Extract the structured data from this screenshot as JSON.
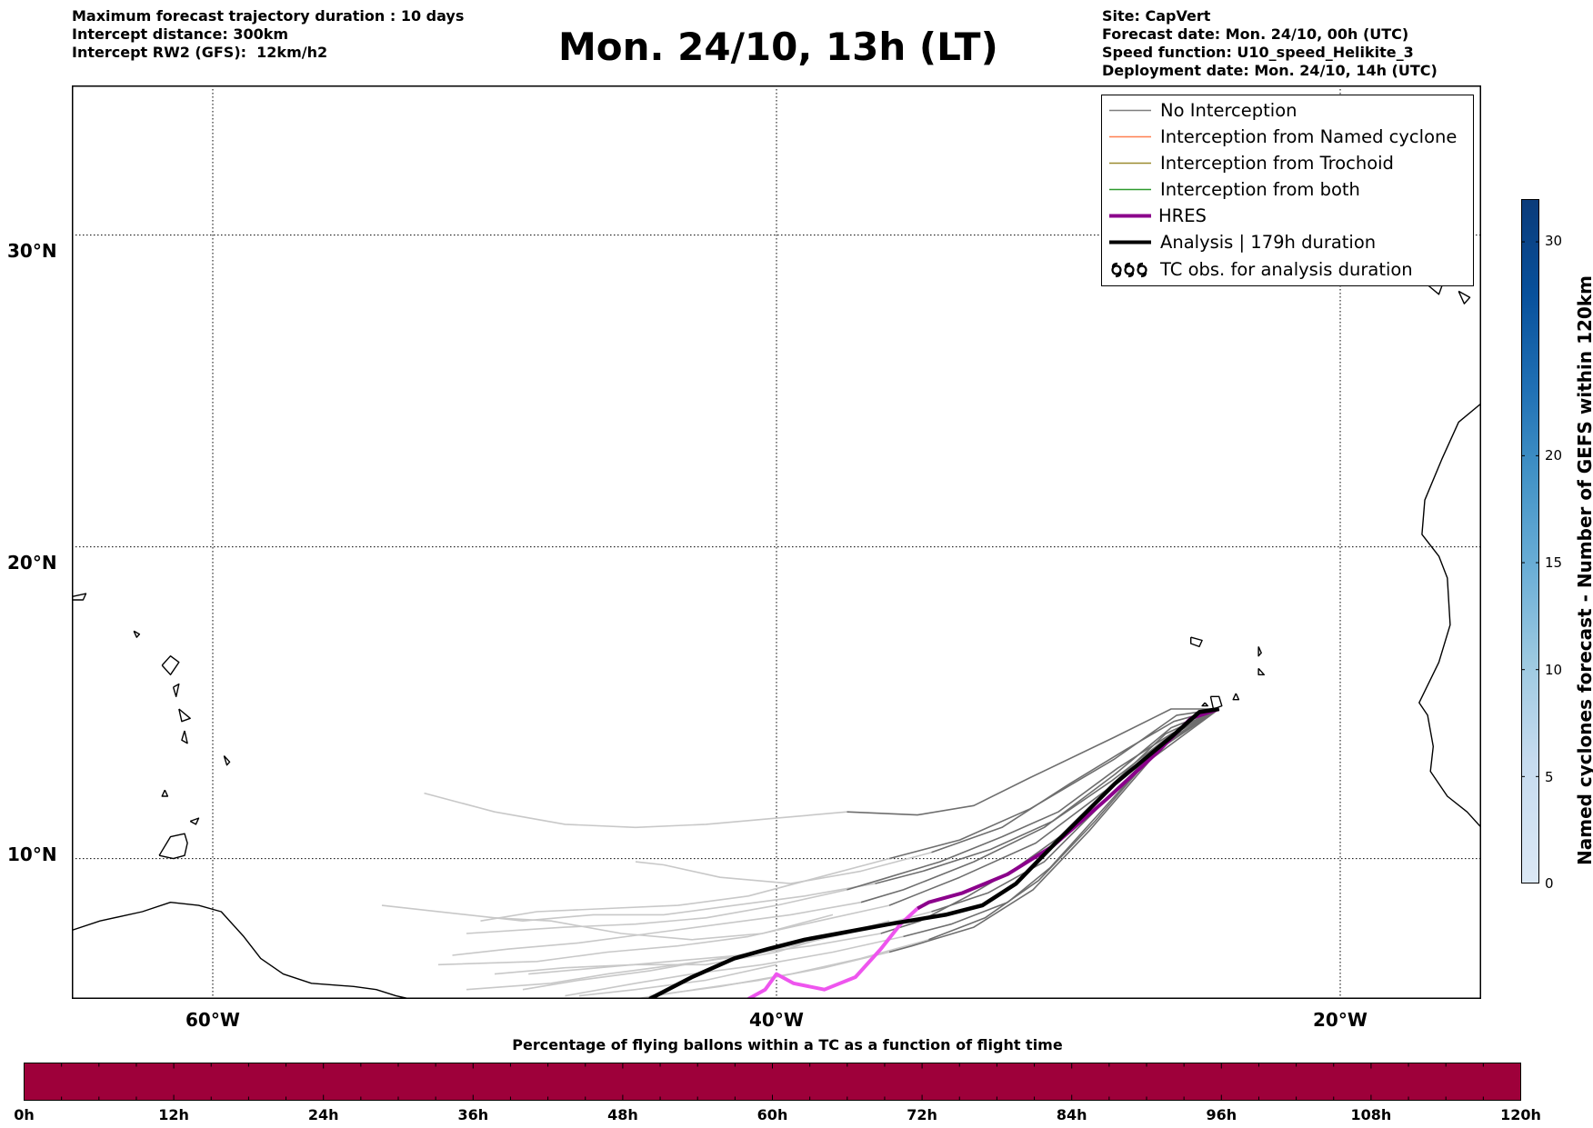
{
  "header": {
    "left_lines": [
      "Maximum forecast trajectory duration : 10 days",
      "Intercept distance: 300km",
      "Intercept RW2 (GFS):  12km/h2"
    ],
    "title": "Mon. 24/10, 13h (LT)",
    "right_lines": [
      "Site: CapVert",
      "Forecast date: Mon. 24/10, 00h (UTC)",
      "Speed function: U10_speed_Helikite_3",
      "Deployment date: Mon. 24/10, 14h (UTC)"
    ]
  },
  "map": {
    "lon_range": [
      -65,
      -15
    ],
    "lat_range": [
      5.5,
      34.8
    ],
    "lon_gridlines": [
      -60,
      -40,
      -20
    ],
    "lat_gridlines": [
      10,
      20,
      30
    ],
    "lon_tick_labels": [
      "60°W",
      "40°W",
      "20°W"
    ],
    "lat_tick_labels": [
      "10°N",
      "20°N",
      "30°N"
    ]
  },
  "legend": {
    "items": [
      {
        "label": "No Interception",
        "color": "#7f7f7f",
        "style": "thin"
      },
      {
        "label": "Interception from Named cyclone",
        "color": "#ff7f50",
        "style": "thin"
      },
      {
        "label": "Interception from Trochoid",
        "color": "#9a8a2e",
        "style": "thin"
      },
      {
        "label": "Interception from both",
        "color": "#2e9a2e",
        "style": "thin"
      },
      {
        "label": "HRES",
        "color": "#8b008b",
        "style": "thick"
      },
      {
        "label": "Analysis | 179h duration",
        "color": "#000000",
        "style": "thick"
      },
      {
        "label": "TC obs. for analysis duration",
        "color": "#000000",
        "style": "cyclone-symbols"
      }
    ]
  },
  "colorbar_vertical": {
    "label": "Named cyclones forecast - Number of GEFS within 120km",
    "ticks": [
      "0",
      "5",
      "10",
      "15",
      "20",
      "30"
    ],
    "tick_values": [
      0,
      5,
      10,
      15,
      20,
      30
    ],
    "max": 32,
    "color_low": "#dbe8f5",
    "color_high": "#0b3b7a"
  },
  "colorbar_horizontal": {
    "title": "Percentage of flying ballons within a TC as a function of flight time",
    "ticks": [
      "0h",
      "12h",
      "24h",
      "36h",
      "48h",
      "60h",
      "72h",
      "84h",
      "96h",
      "108h",
      "120h"
    ],
    "fill_color": "#9e003a"
  },
  "trajectories": {
    "analysis": [
      [
        -24.3,
        14.8
      ],
      [
        -25.0,
        14.7
      ],
      [
        -26.0,
        13.9
      ],
      [
        -28.0,
        12.4
      ],
      [
        -30.0,
        10.6
      ],
      [
        -31.5,
        9.2
      ],
      [
        -32.7,
        8.5
      ],
      [
        -34.0,
        8.2
      ],
      [
        -36.0,
        7.9
      ],
      [
        -37.8,
        7.6
      ],
      [
        -39.0,
        7.4
      ],
      [
        -40.3,
        7.1
      ],
      [
        -41.5,
        6.8
      ],
      [
        -43.0,
        6.2
      ],
      [
        -44.5,
        5.5
      ]
    ],
    "hres": [
      [
        -24.3,
        14.8
      ],
      [
        -25.3,
        14.5
      ],
      [
        -26.5,
        13.4
      ],
      [
        -28.3,
        11.9
      ],
      [
        -30.2,
        10.4
      ],
      [
        -31.8,
        9.5
      ],
      [
        -33.4,
        8.9
      ],
      [
        -34.6,
        8.6
      ],
      [
        -35.0,
        8.4
      ],
      [
        -35.6,
        7.9
      ],
      [
        -36.3,
        7.1
      ],
      [
        -37.2,
        6.2
      ],
      [
        -38.3,
        5.8
      ],
      [
        -39.4,
        6.0
      ],
      [
        -40.0,
        6.3
      ],
      [
        -40.4,
        5.8
      ],
      [
        -41.0,
        5.5
      ]
    ],
    "no_interception_dark": [
      [
        [
          -24.3,
          14.8
        ],
        [
          -26.0,
          14.8
        ],
        [
          -28.0,
          13.9
        ],
        [
          -31.0,
          12.6
        ],
        [
          -33.0,
          11.7
        ],
        [
          -35.0,
          11.4
        ],
        [
          -37.5,
          11.5
        ]
      ],
      [
        [
          -24.3,
          14.8
        ],
        [
          -25.8,
          14.6
        ],
        [
          -28.0,
          13.2
        ],
        [
          -31.0,
          11.6
        ],
        [
          -33.5,
          10.6
        ],
        [
          -36.0,
          10.0
        ]
      ],
      [
        [
          -24.3,
          14.8
        ],
        [
          -26.0,
          14.2
        ],
        [
          -28.0,
          12.7
        ],
        [
          -30.5,
          11.0
        ],
        [
          -33.0,
          9.9
        ],
        [
          -35.5,
          9.0
        ],
        [
          -37.0,
          8.6
        ]
      ],
      [
        [
          -24.3,
          14.8
        ],
        [
          -26.2,
          14.0
        ],
        [
          -28.3,
          12.2
        ],
        [
          -30.8,
          10.5
        ],
        [
          -33.5,
          9.4
        ],
        [
          -36.0,
          8.5
        ]
      ],
      [
        [
          -24.3,
          14.8
        ],
        [
          -26.3,
          13.7
        ],
        [
          -28.4,
          11.8
        ],
        [
          -30.5,
          9.9
        ],
        [
          -32.5,
          8.9
        ],
        [
          -34.5,
          8.3
        ]
      ],
      [
        [
          -24.3,
          14.8
        ],
        [
          -26.5,
          13.5
        ],
        [
          -28.6,
          11.4
        ],
        [
          -30.3,
          9.7
        ],
        [
          -31.8,
          8.6
        ],
        [
          -33.8,
          7.9
        ],
        [
          -35.5,
          7.5
        ]
      ],
      [
        [
          -24.3,
          14.8
        ],
        [
          -26.1,
          13.9
        ],
        [
          -28.1,
          12.5
        ],
        [
          -30.2,
          11.2
        ],
        [
          -32.4,
          10.3
        ],
        [
          -34.8,
          9.6
        ],
        [
          -36.5,
          9.2
        ]
      ],
      [
        [
          -24.3,
          14.8
        ],
        [
          -25.9,
          14.4
        ],
        [
          -27.6,
          13.5
        ],
        [
          -29.6,
          12.4
        ],
        [
          -32.0,
          11.0
        ],
        [
          -34.5,
          10.2
        ]
      ],
      [
        [
          -24.3,
          14.8
        ],
        [
          -26.4,
          13.6
        ],
        [
          -28.7,
          11.2
        ],
        [
          -30.7,
          9.3
        ],
        [
          -32.6,
          8.1
        ],
        [
          -34.6,
          7.4
        ]
      ],
      [
        [
          -24.3,
          14.8
        ],
        [
          -26.6,
          13.4
        ],
        [
          -28.2,
          12.0
        ],
        [
          -29.8,
          10.8
        ],
        [
          -31.5,
          9.7
        ],
        [
          -33.2,
          8.8
        ],
        [
          -34.9,
          8.0
        ],
        [
          -36.3,
          7.6
        ]
      ],
      [
        [
          -24.3,
          14.8
        ],
        [
          -26.0,
          14.0
        ],
        [
          -27.9,
          12.9
        ],
        [
          -30.0,
          11.5
        ],
        [
          -32.0,
          10.7
        ],
        [
          -34.2,
          9.9
        ],
        [
          -36.4,
          9.3
        ],
        [
          -37.5,
          9.0
        ]
      ],
      [
        [
          -24.3,
          14.8
        ],
        [
          -26.7,
          13.2
        ],
        [
          -28.9,
          10.9
        ],
        [
          -30.9,
          9.0
        ],
        [
          -33.0,
          7.8
        ],
        [
          -35.2,
          7.2
        ],
        [
          -36.0,
          7.0
        ]
      ]
    ],
    "no_interception_light": [
      [
        [
          -37.5,
          11.5
        ],
        [
          -40.0,
          11.3
        ],
        [
          -42.5,
          11.1
        ],
        [
          -45.0,
          11.0
        ],
        [
          -47.5,
          11.1
        ],
        [
          -50.0,
          11.5
        ],
        [
          -52.5,
          12.1
        ]
      ],
      [
        [
          -36.0,
          10.0
        ],
        [
          -38.5,
          9.4
        ],
        [
          -41.0,
          8.8
        ],
        [
          -43.5,
          8.5
        ],
        [
          -46.0,
          8.4
        ],
        [
          -48.5,
          8.3
        ],
        [
          -50.5,
          8.0
        ]
      ],
      [
        [
          -37.0,
          8.6
        ],
        [
          -39.5,
          8.2
        ],
        [
          -42.0,
          7.9
        ],
        [
          -44.5,
          7.6
        ],
        [
          -47.0,
          7.3
        ],
        [
          -49.5,
          7.1
        ],
        [
          -51.5,
          6.9
        ]
      ],
      [
        [
          -36.0,
          8.5
        ],
        [
          -38.5,
          8.0
        ],
        [
          -41.0,
          7.5
        ],
        [
          -43.5,
          7.2
        ],
        [
          -46.0,
          7.0
        ],
        [
          -48.5,
          6.7
        ],
        [
          -52.0,
          6.6
        ]
      ],
      [
        [
          -34.5,
          8.3
        ],
        [
          -37.0,
          7.7
        ],
        [
          -39.5,
          7.2
        ],
        [
          -42.0,
          6.8
        ],
        [
          -44.5,
          6.4
        ],
        [
          -47.0,
          6.1
        ],
        [
          -49.0,
          5.8
        ]
      ],
      [
        [
          -35.5,
          7.5
        ],
        [
          -38.0,
          7.0
        ],
        [
          -40.5,
          6.6
        ],
        [
          -43.0,
          6.3
        ],
        [
          -45.0,
          6.0
        ],
        [
          -47.5,
          5.6
        ]
      ],
      [
        [
          -36.5,
          9.2
        ],
        [
          -39.0,
          8.8
        ],
        [
          -41.5,
          8.5
        ],
        [
          -44.0,
          8.2
        ],
        [
          -46.5,
          8.2
        ],
        [
          -49.0,
          8.0
        ],
        [
          -54.0,
          8.5
        ]
      ],
      [
        [
          -34.5,
          10.2
        ],
        [
          -37.0,
          9.6
        ],
        [
          -39.5,
          9.2
        ],
        [
          -42.0,
          9.4
        ],
        [
          -44.0,
          9.8
        ],
        [
          -45.0,
          9.9
        ]
      ],
      [
        [
          -34.6,
          7.4
        ],
        [
          -37.0,
          6.8
        ],
        [
          -39.5,
          6.3
        ],
        [
          -42.0,
          5.9
        ],
        [
          -44.5,
          5.6
        ]
      ],
      [
        [
          -36.3,
          7.6
        ],
        [
          -38.8,
          7.2
        ],
        [
          -41.3,
          6.9
        ],
        [
          -43.8,
          6.7
        ],
        [
          -46.3,
          6.5
        ],
        [
          -48.8,
          6.3
        ]
      ],
      [
        [
          -37.5,
          9.0
        ],
        [
          -40.0,
          8.5
        ],
        [
          -42.5,
          8.1
        ],
        [
          -45.0,
          7.9
        ],
        [
          -47.5,
          7.8
        ],
        [
          -51.0,
          7.6
        ]
      ],
      [
        [
          -36.0,
          7.0
        ],
        [
          -38.3,
          6.5
        ],
        [
          -40.6,
          6.1
        ],
        [
          -42.9,
          5.8
        ],
        [
          -45.0,
          5.5
        ]
      ],
      [
        [
          -38.0,
          8.2
        ],
        [
          -40.5,
          7.6
        ],
        [
          -43.0,
          7.4
        ],
        [
          -45.5,
          7.6
        ],
        [
          -48.0,
          8.0
        ],
        [
          -50.0,
          8.1
        ]
      ],
      [
        [
          -37.8,
          7.6
        ],
        [
          -40.0,
          7.0
        ],
        [
          -42.5,
          6.6
        ],
        [
          -45.0,
          6.6
        ],
        [
          -47.5,
          6.5
        ],
        [
          -50.0,
          6.3
        ]
      ],
      [
        [
          -40.0,
          6.6
        ],
        [
          -42.5,
          6.1
        ],
        [
          -45.0,
          5.8
        ],
        [
          -47.0,
          5.6
        ]
      ],
      [
        [
          -36.0,
          8.0
        ],
        [
          -38.5,
          7.4
        ],
        [
          -41.0,
          6.9
        ],
        [
          -43.5,
          6.6
        ],
        [
          -46.0,
          6.3
        ],
        [
          -48.0,
          6.0
        ],
        [
          -51.0,
          5.8
        ]
      ]
    ]
  },
  "coastlines": {
    "south_america": [
      [
        -65.0,
        7.7
      ],
      [
        -64.0,
        8.0
      ],
      [
        -62.5,
        8.3
      ],
      [
        -61.5,
        8.6
      ],
      [
        -60.5,
        8.5
      ],
      [
        -59.7,
        8.3
      ],
      [
        -58.9,
        7.5
      ],
      [
        -58.3,
        6.8
      ],
      [
        -57.5,
        6.3
      ],
      [
        -56.5,
        6.0
      ],
      [
        -55.0,
        5.9
      ],
      [
        -54.2,
        5.8
      ],
      [
        -53.5,
        5.6
      ],
      [
        -52.5,
        5.4
      ]
    ],
    "trinidad": [
      [
        -61.9,
        10.1
      ],
      [
        -61.5,
        10.7
      ],
      [
        -61.0,
        10.8
      ],
      [
        -60.9,
        10.5
      ],
      [
        -61.0,
        10.1
      ],
      [
        -61.4,
        10.0
      ],
      [
        -61.9,
        10.1
      ]
    ],
    "tobago": [
      [
        -60.8,
        11.2
      ],
      [
        -60.5,
        11.3
      ],
      [
        -60.6,
        11.1
      ],
      [
        -60.8,
        11.2
      ]
    ],
    "antilles": [
      [
        [
          -61.8,
          16.2
        ],
        [
          -61.5,
          16.5
        ],
        [
          -61.2,
          16.3
        ],
        [
          -61.5,
          15.9
        ],
        [
          -61.8,
          16.2
        ]
      ],
      [
        [
          -61.4,
          15.5
        ],
        [
          -61.2,
          15.6
        ],
        [
          -61.3,
          15.2
        ],
        [
          -61.4,
          15.5
        ]
      ],
      [
        [
          -61.2,
          14.8
        ],
        [
          -60.8,
          14.5
        ],
        [
          -61.1,
          14.4
        ],
        [
          -61.2,
          14.8
        ]
      ],
      [
        [
          -61.0,
          14.1
        ],
        [
          -60.9,
          13.7
        ],
        [
          -61.1,
          13.8
        ],
        [
          -61.0,
          14.1
        ]
      ],
      [
        [
          -59.6,
          13.3
        ],
        [
          -59.4,
          13.1
        ],
        [
          -59.5,
          13.0
        ],
        [
          -59.6,
          13.3
        ]
      ],
      [
        [
          -61.7,
          12.2
        ],
        [
          -61.6,
          12.0
        ],
        [
          -61.8,
          12.0
        ],
        [
          -61.7,
          12.2
        ]
      ],
      [
        [
          -62.8,
          17.3
        ],
        [
          -62.6,
          17.2
        ],
        [
          -62.7,
          17.1
        ],
        [
          -62.8,
          17.3
        ]
      ],
      [
        [
          -65.0,
          18.4
        ],
        [
          -64.5,
          18.5
        ],
        [
          -64.6,
          18.3
        ],
        [
          -65.0,
          18.3
        ]
      ]
    ],
    "africa": [
      [
        -15.0,
        24.6
      ],
      [
        -15.8,
        24.0
      ],
      [
        -16.4,
        22.8
      ],
      [
        -17.0,
        21.5
      ],
      [
        -17.1,
        20.4
      ],
      [
        -16.5,
        19.7
      ],
      [
        -16.2,
        19.0
      ],
      [
        -16.1,
        17.5
      ],
      [
        -16.5,
        16.3
      ],
      [
        -17.2,
        15.0
      ],
      [
        -16.9,
        14.6
      ],
      [
        -16.7,
        13.6
      ],
      [
        -16.8,
        12.8
      ],
      [
        -16.2,
        12.0
      ],
      [
        -15.5,
        11.5
      ],
      [
        -15.0,
        11.0
      ]
    ],
    "cape_verde": [
      [
        [
          -25.3,
          17.1
        ],
        [
          -24.9,
          17.0
        ],
        [
          -25.0,
          16.8
        ],
        [
          -25.3,
          16.9
        ],
        [
          -25.3,
          17.1
        ]
      ],
      [
        [
          -22.9,
          16.8
        ],
        [
          -22.8,
          16.6
        ],
        [
          -22.9,
          16.5
        ],
        [
          -22.9,
          16.8
        ]
      ],
      [
        [
          -22.9,
          16.1
        ],
        [
          -22.7,
          15.9
        ],
        [
          -22.9,
          15.9
        ],
        [
          -22.9,
          16.1
        ]
      ],
      [
        [
          -24.6,
          15.2
        ],
        [
          -24.3,
          15.2
        ],
        [
          -24.2,
          14.9
        ],
        [
          -24.5,
          14.8
        ],
        [
          -24.6,
          15.2
        ]
      ],
      [
        [
          -23.7,
          15.3
        ],
        [
          -23.6,
          15.1
        ],
        [
          -23.8,
          15.1
        ],
        [
          -23.7,
          15.3
        ]
      ],
      [
        [
          -24.8,
          15.0
        ],
        [
          -24.7,
          14.9
        ],
        [
          -24.9,
          14.9
        ],
        [
          -24.8,
          15.0
        ]
      ]
    ],
    "canaries": [
      [
        [
          -18.0,
          28.8
        ],
        [
          -17.8,
          28.6
        ],
        [
          -18.0,
          28.5
        ],
        [
          -18.0,
          28.8
        ]
      ],
      [
        [
          -16.9,
          28.4
        ],
        [
          -16.3,
          28.6
        ],
        [
          -16.5,
          28.1
        ],
        [
          -16.9,
          28.4
        ]
      ],
      [
        [
          -15.8,
          28.2
        ],
        [
          -15.4,
          28.0
        ],
        [
          -15.6,
          27.8
        ],
        [
          -15.8,
          28.2
        ]
      ]
    ]
  }
}
